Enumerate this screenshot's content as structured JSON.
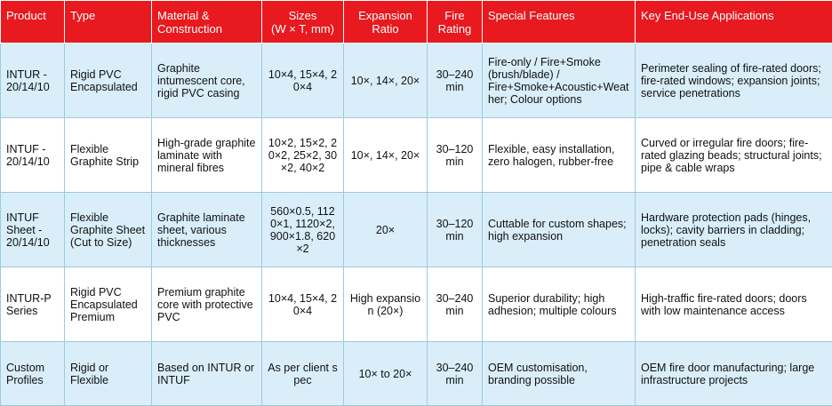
{
  "headers": [
    "Product",
    "Type",
    "Material &\nConstruction",
    "Sizes\n(W × T, mm)",
    "Expansion\nRatio",
    "Fire\nRating",
    "Special Features",
    "Key End-Use Applications"
  ],
  "rows": [
    {
      "product": "INTUR - 20/14/10",
      "type": "Rigid PVC Encapsulated",
      "material": "Graphite intumescent core, rigid PVC casing",
      "sizes": "10×4, 15×4, 20×4",
      "expansion": "10×, 14×, 20×",
      "fire": "30–240 min",
      "features": "Fire-only / Fire+Smoke (brush/blade) / Fire+Smoke+Acoustic+Weather; Colour options",
      "applications": "Perimeter sealing of fire-rated doors; fire-rated windows; expansion joints; service penetrations"
    },
    {
      "product": "INTUF - 20/14/10",
      "type": "Flexible Graphite Strip",
      "material": "High-grade graphite laminate with mineral fibres",
      "sizes": "10×2, 15×2, 20×2, 25×2, 30×2, 40×2",
      "expansion": "10×, 14×, 20×",
      "fire": "30–120 min",
      "features": "Flexible, easy installation, zero halogen, rubber-free",
      "applications": "Curved or irregular fire doors; fire-rated glazing beads; structural joints; pipe & cable wraps"
    },
    {
      "product": "INTUF Sheet - 20/14/10",
      "type": "Flexible Graphite Sheet (Cut to Size)",
      "material": "Graphite laminate sheet, various thicknesses",
      "sizes": "560×0.5, 1120×1, 1120×2, 900×1.8, 620×2",
      "expansion": "20×",
      "fire": "30–120 min",
      "features": "Cuttable for custom shapes; high expansion",
      "applications": "Hardware protection pads (hinges, locks); cavity barriers in cladding; penetration seals"
    },
    {
      "product": "INTUR-P Series",
      "type": "Rigid PVC Encapsulated Premium",
      "material": "Premium graphite core with protective PVC",
      "sizes": "10×4, 15×4, 20×4",
      "expansion": "High expansion (20×)",
      "fire": "30–240 min",
      "features": "Superior durability; high adhesion; multiple colours",
      "applications": "High-traffic fire-rated doors; doors with low maintenance access"
    },
    {
      "product": "Custom Profiles",
      "type": "Rigid or Flexible",
      "material": "Based on INTUR or INTUF",
      "sizes": "As per client spec",
      "expansion": "10× to 20×",
      "fire": "30–240 min",
      "features": "OEM customisation, branding possible",
      "applications": "OEM fire door manufacturing; large infrastructure projects"
    }
  ],
  "colors": {
    "header_bg": "#e8191f",
    "header_text": "#ffffff",
    "band_row": "#d9eef9",
    "plain_row": "#ffffff"
  }
}
